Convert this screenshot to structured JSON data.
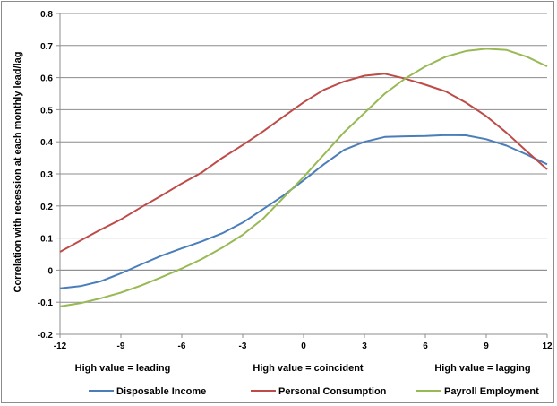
{
  "chart_data": {
    "type": "line",
    "title": "",
    "xlabel": "",
    "ylabel": "Correlation with recession at each monthly lead/lag",
    "xlim": [
      -12,
      12
    ],
    "ylim": [
      -0.2,
      0.8
    ],
    "xticks": [
      -12,
      -9,
      -6,
      -3,
      0,
      3,
      6,
      9,
      12
    ],
    "yticks": [
      -0.2,
      -0.1,
      0,
      0.1,
      0.2,
      0.3,
      0.4,
      0.5,
      0.6,
      0.7,
      0.8
    ],
    "ytick_labels": [
      "-0.2",
      "-0.1",
      "0",
      "0.1",
      "0.2",
      "0.3",
      "0.4",
      "0.5",
      "0.6",
      "0.7",
      "0.8"
    ],
    "grid": "horizontal",
    "legend_position": "bottom",
    "annotations": [
      "High value = leading",
      "High value = coincident",
      "High value = lagging"
    ],
    "x": [
      -12,
      -11,
      -10,
      -9,
      -8,
      -7,
      -6,
      -5,
      -4,
      -3,
      -2,
      -1,
      0,
      1,
      2,
      3,
      4,
      5,
      6,
      7,
      8,
      9,
      10,
      11,
      12
    ],
    "series": [
      {
        "name": "Disposable Income",
        "color": "#4a7ebb",
        "values": [
          -0.057,
          -0.05,
          -0.035,
          -0.01,
          0.018,
          0.045,
          0.068,
          0.09,
          0.115,
          0.148,
          0.19,
          0.232,
          0.28,
          0.33,
          0.375,
          0.4,
          0.415,
          0.417,
          0.418,
          0.421,
          0.42,
          0.408,
          0.388,
          0.36,
          0.33
        ]
      },
      {
        "name": "Personal Consumption",
        "color": "#be4b48",
        "values": [
          0.057,
          0.092,
          0.126,
          0.158,
          0.196,
          0.232,
          0.27,
          0.305,
          0.35,
          0.39,
          0.432,
          0.478,
          0.523,
          0.562,
          0.588,
          0.606,
          0.612,
          0.597,
          0.578,
          0.557,
          0.522,
          0.48,
          0.428,
          0.37,
          0.314
        ]
      },
      {
        "name": "Payroll Employment",
        "color": "#98b954",
        "values": [
          -0.113,
          -0.103,
          -0.088,
          -0.07,
          -0.048,
          -0.022,
          0.005,
          0.035,
          0.07,
          0.11,
          0.16,
          0.225,
          0.29,
          0.36,
          0.43,
          0.49,
          0.55,
          0.597,
          0.635,
          0.665,
          0.683,
          0.69,
          0.686,
          0.665,
          0.635
        ]
      }
    ]
  }
}
